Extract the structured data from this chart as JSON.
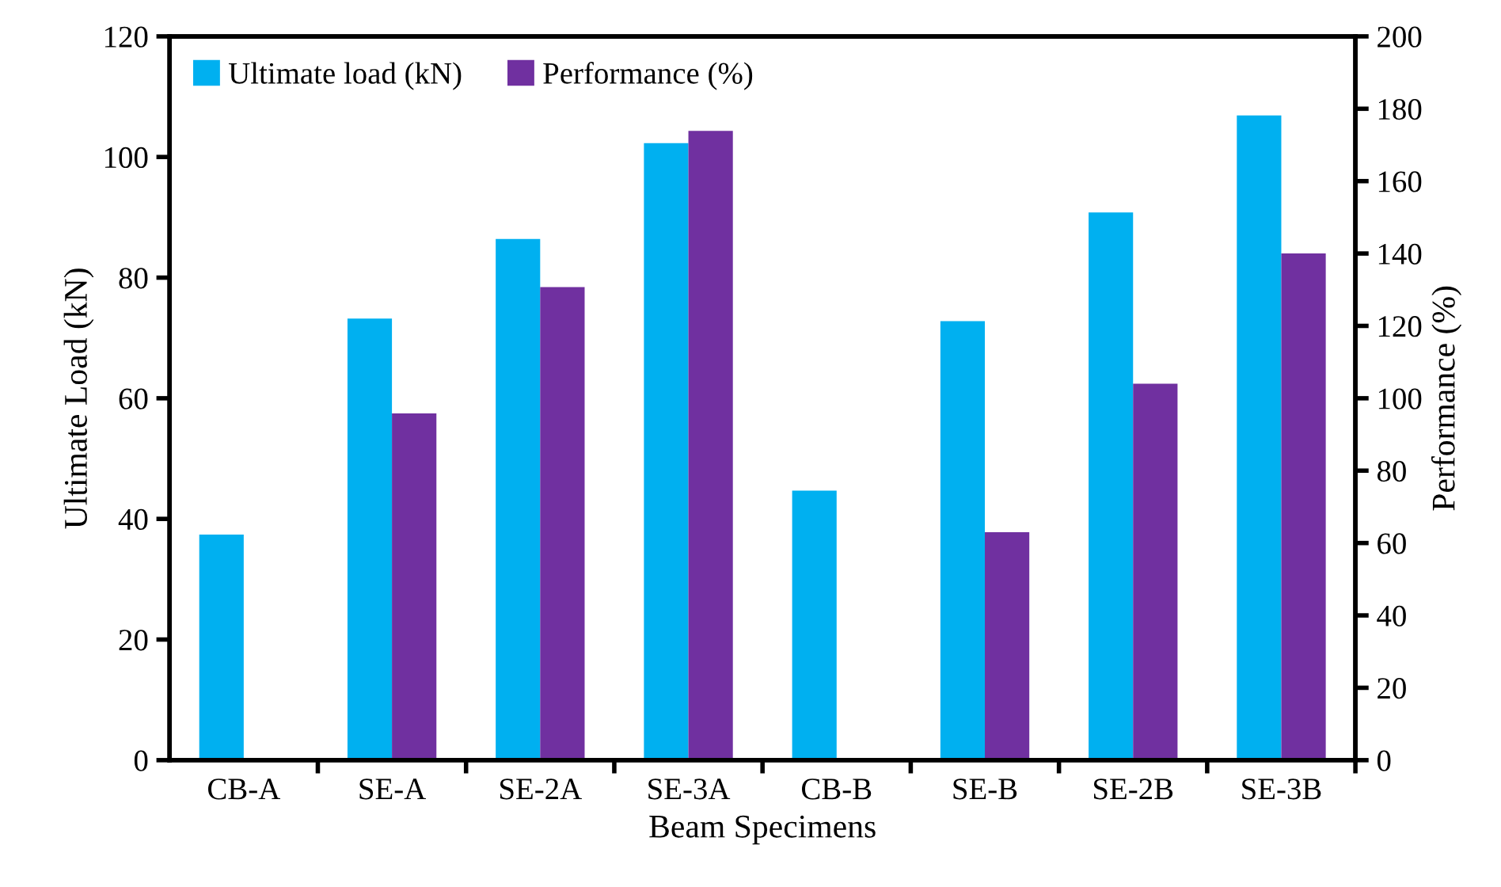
{
  "chart_data": {
    "type": "bar",
    "xlabel": "Beam Specimens",
    "ylabel": "Ultimate Load (kN)",
    "y2label": "Performance (%)",
    "categories": [
      "CB-A",
      "SE-A",
      "SE-2A",
      "SE-3A",
      "CB-B",
      "SE-B",
      "SE-2B",
      "SE-3B"
    ],
    "series": [
      {
        "name": "Ultimate load (kN)",
        "color": "#00b0f0",
        "values": [
          37.4,
          73.2,
          86.4,
          102.3,
          44.7,
          72.8,
          90.8,
          106.9
        ]
      },
      {
        "name": "Performance (%)",
        "color": "#7030a0",
        "axis": "y2",
        "values": [
          null,
          95.8,
          130.7,
          173.9,
          null,
          63.0,
          104.0,
          140.0
        ]
      }
    ],
    "ylim": [
      0,
      120
    ],
    "yticks": [
      0,
      20,
      40,
      60,
      80,
      100,
      120
    ],
    "y2lim": [
      0,
      200
    ],
    "y2ticks": [
      0,
      20,
      40,
      60,
      80,
      100,
      120,
      140,
      160,
      180,
      200
    ],
    "legend": "top left",
    "grid": false
  }
}
